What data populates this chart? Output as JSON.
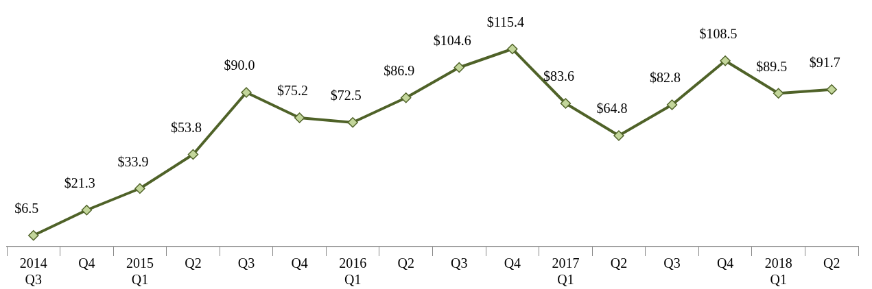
{
  "chart_data": {
    "type": "line",
    "categories": [
      "2014\nQ3",
      "Q4",
      "2015\nQ1",
      "Q2",
      "Q3",
      "Q4",
      "2016\nQ1",
      "Q2",
      "Q3",
      "Q4",
      "2017\nQ1",
      "Q2",
      "Q3",
      "Q4",
      "2018\nQ1",
      "Q2"
    ],
    "series": [
      {
        "color": "#4f6228",
        "values": [
          6.5,
          21.3,
          33.9,
          53.8,
          90.0,
          75.2,
          72.5,
          86.9,
          104.6,
          115.4,
          83.6,
          64.8,
          82.8,
          108.5,
          89.5,
          91.7
        ],
        "value_labels": [
          "$6.5",
          "$21.3",
          "$33.9",
          "$53.8",
          "$90.0",
          "$75.2",
          "$72.5",
          "$86.9",
          "$104.6",
          "$115.4",
          "$83.6",
          "$64.8",
          "$82.8",
          "$108.5",
          "$89.5",
          "$91.7"
        ]
      }
    ],
    "marker": "diamond",
    "line_style": "solid",
    "grid": false,
    "legend": false
  }
}
